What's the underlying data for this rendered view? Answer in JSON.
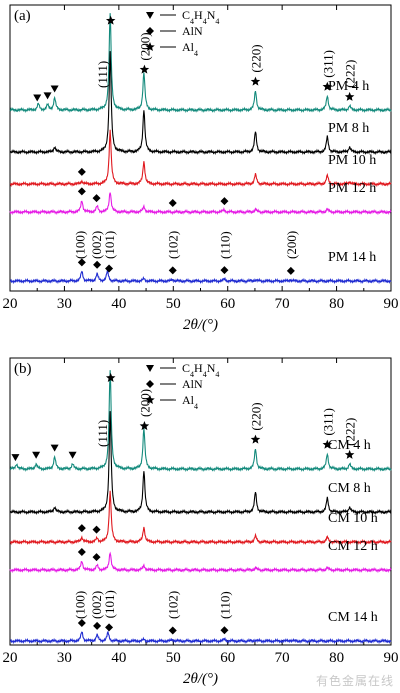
{
  "watermark": "有色金属在线",
  "legend_items": [
    {
      "symbol": "down-triangle",
      "phase": "C4H4N4"
    },
    {
      "symbol": "diamond",
      "phase": "AlN"
    },
    {
      "symbol": "star",
      "phase": "Al4"
    }
  ],
  "colors": {
    "4h": "#138a7c",
    "8h": "#000000",
    "10h": "#e0191f",
    "12h": "#e51ce5",
    "14h": "#1f2bd1"
  },
  "chart_data": [
    {
      "type": "line",
      "panel_label": "(a)",
      "xlabel": "2θ/(°)",
      "xlim": [
        20,
        90
      ],
      "xticks": [
        20,
        30,
        40,
        50,
        60,
        70,
        80,
        90
      ],
      "series": [
        {
          "name": "PM 4 h",
          "color_key": "4h",
          "peaks": [
            [
              25.2,
              0.06
            ],
            [
              26.9,
              0.05
            ],
            [
              28.2,
              0.12
            ],
            [
              38.4,
              0.95
            ],
            [
              44.6,
              0.37
            ],
            [
              65.1,
              0.19
            ],
            [
              78.3,
              0.14
            ],
            [
              82.4,
              0.04
            ]
          ],
          "markers": [
            [
              "tri",
              25.0
            ],
            [
              "tri",
              26.9
            ],
            [
              "tri",
              28.2
            ],
            [
              "star",
              38.5
            ],
            [
              "star",
              44.7
            ],
            [
              "star",
              65.1
            ],
            [
              "star",
              78.3
            ],
            [
              "star",
              82.4
            ]
          ],
          "hkl": [
            [
              "(111)",
              36.9
            ],
            [
              "(200)",
              44.7
            ],
            [
              "(220)",
              65.1
            ],
            [
              "(311)",
              78.3
            ],
            [
              "(222)",
              82.4
            ]
          ]
        },
        {
          "name": "PM 8 h",
          "color_key": "8h",
          "peaks": [
            [
              28.2,
              0.05
            ],
            [
              38.4,
              0.98
            ],
            [
              44.6,
              0.42
            ],
            [
              65.1,
              0.2
            ],
            [
              78.3,
              0.15
            ],
            [
              82.4,
              0.05
            ]
          ],
          "markers": [],
          "hkl": []
        },
        {
          "name": "PM 10 h",
          "color_key": "10h",
          "peaks": [
            [
              33.2,
              0.05
            ],
            [
              38.4,
              0.9
            ],
            [
              44.6,
              0.38
            ],
            [
              65.1,
              0.16
            ],
            [
              78.3,
              0.14
            ],
            [
              82.4,
              0.04
            ]
          ],
          "markers": [
            [
              "dia",
              33.2
            ]
          ],
          "hkl": []
        },
        {
          "name": "PM 12 h",
          "color_key": "12h",
          "peaks": [
            [
              33.2,
              0.25
            ],
            [
              36.0,
              0.12
            ],
            [
              38.4,
              0.45
            ],
            [
              44.6,
              0.12
            ],
            [
              59.3,
              0.05
            ],
            [
              65.1,
              0.06
            ],
            [
              78.3,
              0.06
            ]
          ],
          "markers": [
            [
              "dia",
              33.2
            ],
            [
              "dia",
              35.9
            ],
            [
              "dia",
              49.9
            ],
            [
              "dia",
              59.4
            ]
          ],
          "hkl": []
        },
        {
          "name": "PM 14 h",
          "color_key": "14h",
          "peaks": [
            [
              33.2,
              0.3
            ],
            [
              36.0,
              0.22
            ],
            [
              37.9,
              0.3
            ],
            [
              44.6,
              0.07
            ],
            [
              49.9,
              0.05
            ],
            [
              59.4,
              0.06
            ],
            [
              65.1,
              0.04
            ],
            [
              71.5,
              0.04
            ]
          ],
          "markers": [
            [
              "dia",
              33.2
            ],
            [
              "dia",
              36.0
            ],
            [
              "dia",
              38.2
            ],
            [
              "dia",
              49.9
            ],
            [
              "dia",
              59.4
            ],
            [
              "dia",
              71.6
            ]
          ],
          "hkl": [
            [
              "(100)",
              32.8
            ],
            [
              "(002)",
              35.8
            ],
            [
              "(101)",
              38.2
            ],
            [
              "(102)",
              49.9
            ],
            [
              "(110)",
              59.4
            ],
            [
              "(200)",
              71.6
            ]
          ]
        }
      ]
    },
    {
      "type": "line",
      "panel_label": "(b)",
      "xlabel": "2θ/(°)",
      "xlim": [
        20,
        90
      ],
      "xticks": [
        20,
        30,
        40,
        50,
        60,
        70,
        80,
        90
      ],
      "series": [
        {
          "name": "CM 4 h",
          "color_key": "4h",
          "peaks": [
            [
              21.2,
              0.05
            ],
            [
              24.8,
              0.05
            ],
            [
              28.2,
              0.12
            ],
            [
              31.5,
              0.05
            ],
            [
              38.4,
              0.97
            ],
            [
              44.6,
              0.4
            ],
            [
              65.1,
              0.2
            ],
            [
              78.3,
              0.15
            ],
            [
              82.4,
              0.05
            ]
          ],
          "markers": [
            [
              "tri",
              21.0
            ],
            [
              "tri",
              24.8
            ],
            [
              "tri",
              28.2
            ],
            [
              "tri",
              31.5
            ],
            [
              "star",
              38.5
            ],
            [
              "star",
              44.7
            ],
            [
              "star",
              65.1
            ],
            [
              "star",
              78.3
            ],
            [
              "star",
              82.4
            ]
          ],
          "hkl": [
            [
              "(111)",
              36.9
            ],
            [
              "(200)",
              44.7
            ],
            [
              "(220)",
              65.1
            ],
            [
              "(311)",
              78.3
            ],
            [
              "(222)",
              82.4
            ]
          ]
        },
        {
          "name": "CM 8 h",
          "color_key": "8h",
          "peaks": [
            [
              28.2,
              0.05
            ],
            [
              38.4,
              1.0
            ],
            [
              44.6,
              0.42
            ],
            [
              65.1,
              0.2
            ],
            [
              78.3,
              0.14
            ],
            [
              82.4,
              0.05
            ]
          ],
          "markers": [],
          "hkl": []
        },
        {
          "name": "CM 10 h",
          "color_key": "10h",
          "peaks": [
            [
              33.2,
              0.08
            ],
            [
              36.0,
              0.06
            ],
            [
              38.4,
              0.85
            ],
            [
              44.6,
              0.25
            ],
            [
              65.1,
              0.1
            ],
            [
              78.3,
              0.08
            ]
          ],
          "markers": [
            [
              "dia",
              33.2
            ],
            [
              "dia",
              35.9
            ]
          ],
          "hkl": []
        },
        {
          "name": "CM 12 h",
          "color_key": "12h",
          "peaks": [
            [
              33.2,
              0.2
            ],
            [
              36.0,
              0.1
            ],
            [
              38.4,
              0.4
            ],
            [
              44.6,
              0.1
            ],
            [
              65.1,
              0.05
            ],
            [
              78.3,
              0.05
            ]
          ],
          "markers": [
            [
              "dia",
              33.2
            ],
            [
              "dia",
              35.9
            ]
          ],
          "hkl": []
        },
        {
          "name": "CM 14 h",
          "color_key": "14h",
          "peaks": [
            [
              33.2,
              0.3
            ],
            [
              36.0,
              0.2
            ],
            [
              38.0,
              0.28
            ],
            [
              44.6,
              0.05
            ],
            [
              49.9,
              0.05
            ],
            [
              59.4,
              0.06
            ],
            [
              65.1,
              0.03
            ],
            [
              71.5,
              0.03
            ]
          ],
          "markers": [
            [
              "dia",
              33.2
            ],
            [
              "dia",
              36.0
            ],
            [
              "dia",
              38.2
            ],
            [
              "dia",
              49.9
            ],
            [
              "dia",
              59.4
            ]
          ],
          "hkl": [
            [
              "(100)",
              32.8
            ],
            [
              "(002)",
              35.8
            ],
            [
              "(101)",
              38.2
            ],
            [
              "(102)",
              49.9
            ],
            [
              "(110)",
              59.4
            ]
          ]
        }
      ]
    }
  ]
}
